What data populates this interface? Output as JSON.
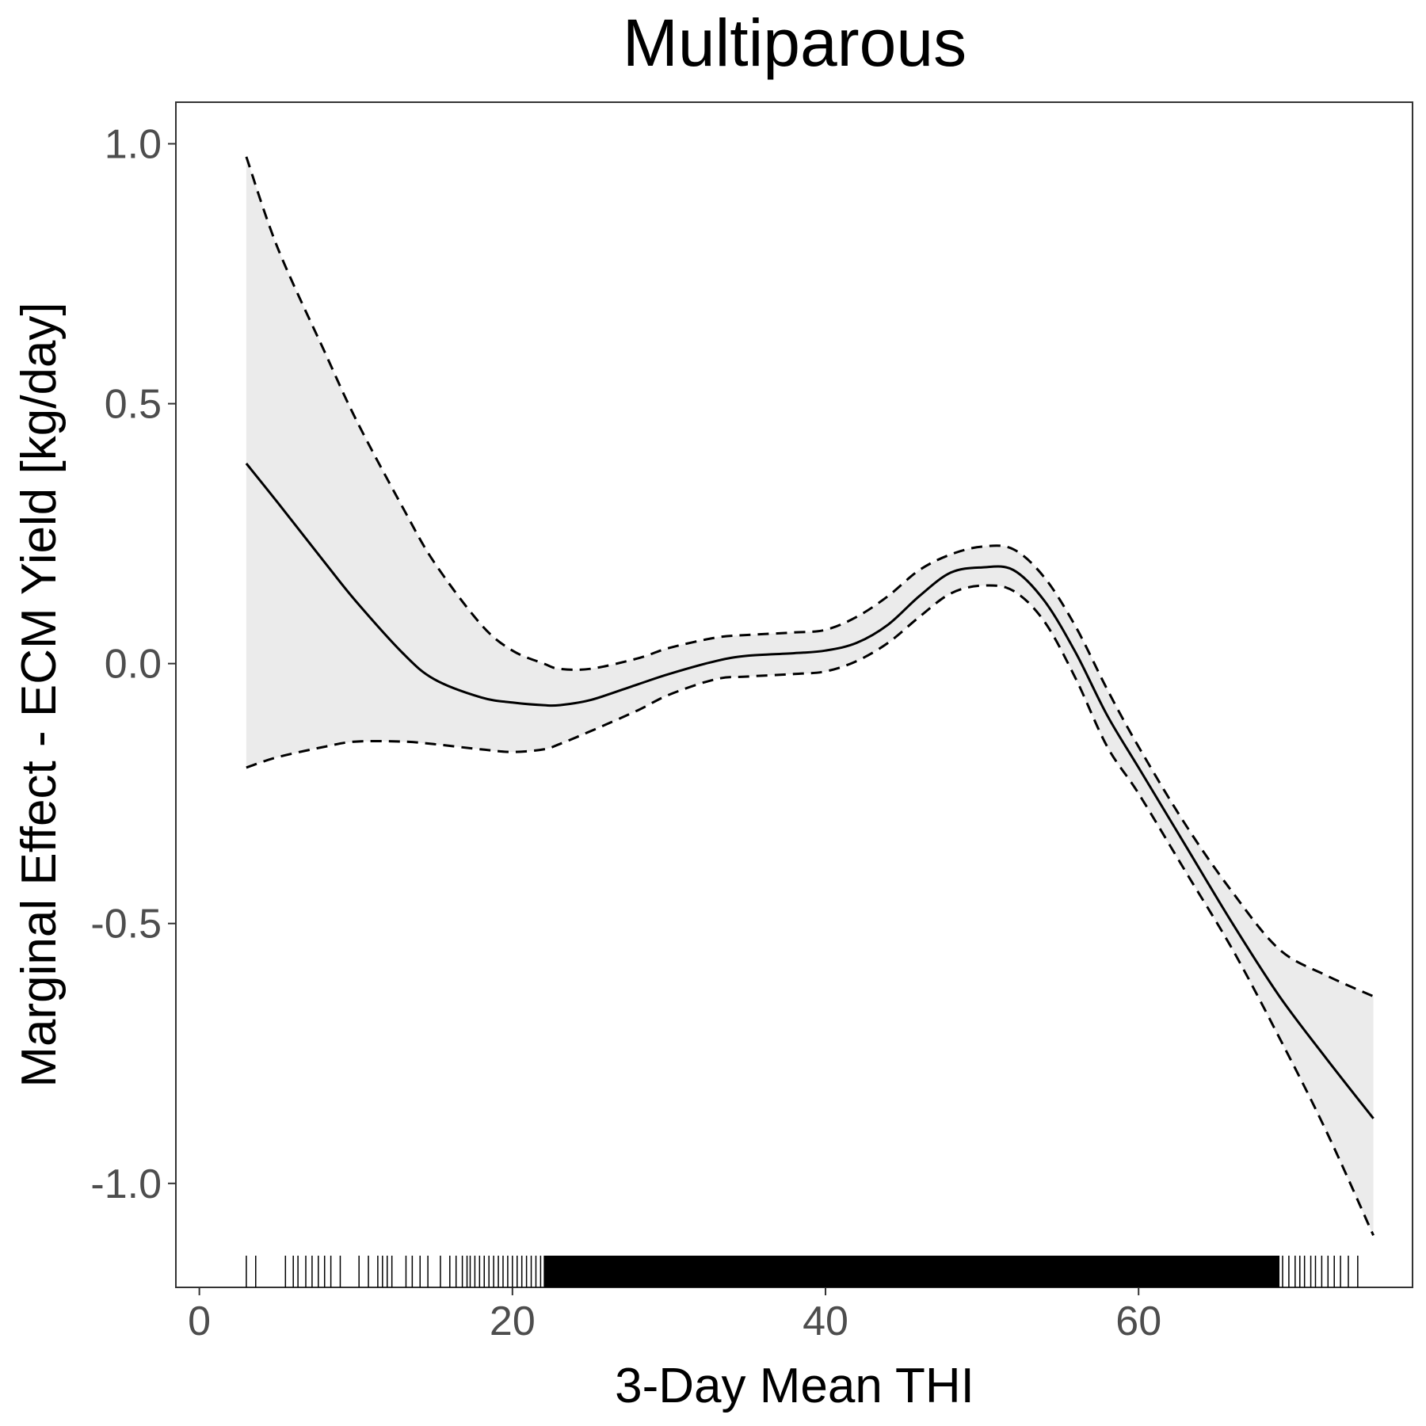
{
  "chart_data": {
    "type": "line",
    "title": "Multiparous",
    "xlabel": "3-Day Mean THI",
    "ylabel": "Marginal Effect - ECM Yield [kg/day]",
    "xlim": [
      -1.5,
      77.5
    ],
    "ylim": [
      -1.2,
      1.08
    ],
    "x_ticks": [
      0,
      20,
      40,
      60
    ],
    "x_tick_labels": [
      "0",
      "20",
      "40",
      "60"
    ],
    "y_ticks": [
      1.0,
      0.5,
      0.0,
      -0.5,
      -1.0
    ],
    "y_tick_labels": [
      "1.0",
      "0.5",
      "0.0",
      "-0.5",
      "-1.0"
    ],
    "grid": false,
    "colors": {
      "line": "#000000",
      "band": "#ebebeb",
      "tick_label": "#4d4d4d",
      "panel_border": "#333333"
    },
    "series": [
      {
        "role": "estimate",
        "style": "solid",
        "x": [
          3,
          5,
          8,
          10,
          13,
          15,
          18,
          20,
          22,
          23,
          25,
          28,
          30,
          33,
          35,
          38,
          40,
          42,
          44,
          46,
          48,
          50,
          52,
          54,
          56,
          58,
          60,
          63,
          66,
          69,
          72,
          75
        ],
        "y": [
          0.385,
          0.31,
          0.195,
          0.12,
          0.02,
          -0.03,
          -0.065,
          -0.075,
          -0.08,
          -0.08,
          -0.07,
          -0.04,
          -0.02,
          0.005,
          0.015,
          0.02,
          0.025,
          0.04,
          0.075,
          0.13,
          0.175,
          0.185,
          0.18,
          0.12,
          0.02,
          -0.1,
          -0.2,
          -0.35,
          -0.5,
          -0.64,
          -0.76,
          -0.875
        ]
      },
      {
        "role": "upper_bound",
        "style": "dashed",
        "x": [
          3,
          5,
          8,
          10,
          13,
          15,
          18,
          20,
          22,
          23,
          25,
          28,
          30,
          33,
          35,
          38,
          40,
          42,
          44,
          46,
          48,
          50,
          52,
          54,
          56,
          58,
          60,
          63,
          66,
          69,
          72,
          75
        ],
        "y": [
          0.975,
          0.8,
          0.6,
          0.47,
          0.3,
          0.195,
          0.075,
          0.025,
          0.0,
          -0.01,
          -0.01,
          0.01,
          0.03,
          0.05,
          0.055,
          0.06,
          0.065,
          0.09,
          0.13,
          0.18,
          0.21,
          0.225,
          0.22,
          0.165,
          0.07,
          -0.05,
          -0.16,
          -0.31,
          -0.44,
          -0.55,
          -0.6,
          -0.64
        ]
      },
      {
        "role": "lower_bound",
        "style": "dashed",
        "x": [
          3,
          5,
          8,
          10,
          13,
          15,
          18,
          20,
          22,
          23,
          25,
          28,
          30,
          33,
          35,
          38,
          40,
          42,
          44,
          46,
          48,
          50,
          52,
          54,
          56,
          58,
          60,
          63,
          66,
          69,
          72,
          75
        ],
        "y": [
          -0.2,
          -0.18,
          -0.16,
          -0.15,
          -0.15,
          -0.155,
          -0.165,
          -0.17,
          -0.165,
          -0.155,
          -0.13,
          -0.09,
          -0.06,
          -0.03,
          -0.025,
          -0.02,
          -0.015,
          0.005,
          0.04,
          0.09,
          0.135,
          0.15,
          0.14,
          0.08,
          -0.03,
          -0.16,
          -0.25,
          -0.4,
          -0.55,
          -0.72,
          -0.9,
          -1.1
        ]
      }
    ],
    "rug": {
      "description": "rug marks of observed x values",
      "x": [
        3,
        3.6,
        5.5,
        6,
        6.3,
        6.8,
        7.2,
        7.6,
        8,
        8.4,
        9,
        10.2,
        10.8,
        11.4,
        11.7,
        12,
        12.3,
        13.2,
        13.6,
        14.1,
        14.6,
        15.4,
        16,
        16.4,
        16.8,
        17.1,
        17.3,
        17.6,
        17.9,
        18.2,
        18.5,
        18.8,
        19.1,
        19.4,
        19.7,
        20,
        20.3,
        20.6,
        20.9,
        21.2,
        21.5,
        21.8,
        22.1,
        22.4,
        22.7,
        23,
        69.2,
        69.6,
        70,
        70.3,
        70.6,
        71,
        71.3,
        71.7,
        72.1,
        72.5,
        72.9,
        73.4,
        74
      ],
      "dense_range": [
        22,
        69
      ]
    }
  }
}
